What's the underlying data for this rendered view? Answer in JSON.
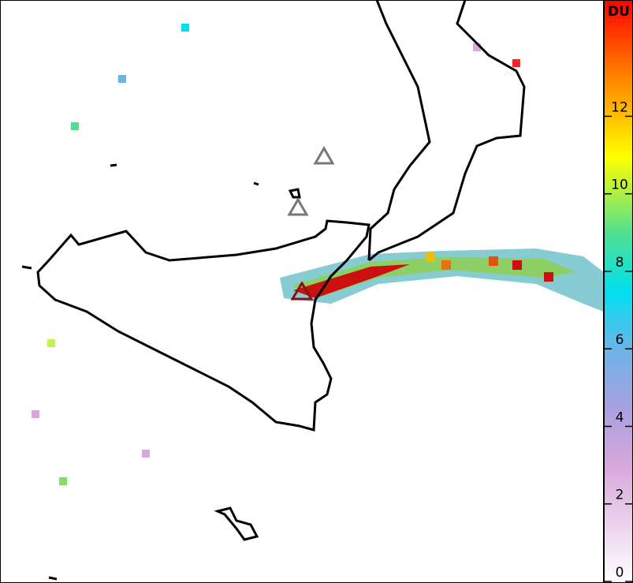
{
  "colorbar": {
    "label": "DU",
    "lim": [
      0,
      15
    ],
    "ticks": [
      0,
      2,
      4,
      6,
      8,
      10,
      12
    ]
  }
}
